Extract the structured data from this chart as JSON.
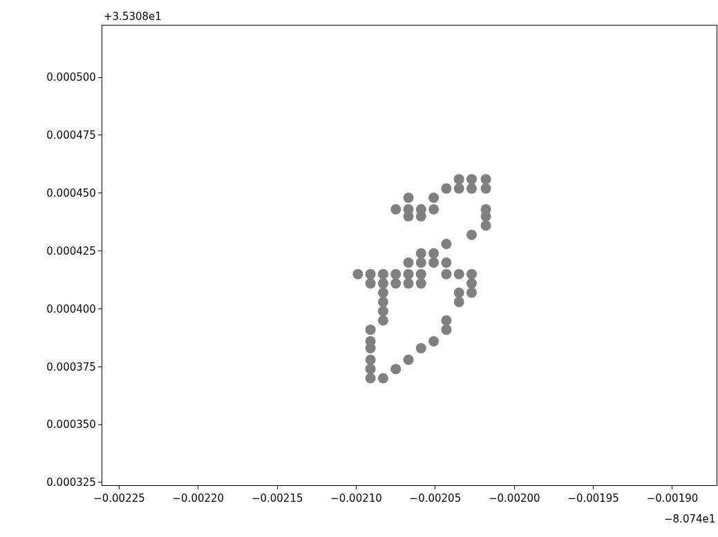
{
  "chart_data": {
    "type": "scatter",
    "color": "#808080",
    "marker": "circle",
    "legend": false,
    "xlim": [
      -0.0022607,
      -0.001872
    ],
    "ylim": [
      0.0003238,
      0.0005224
    ],
    "xticks": [
      {
        "value": -0.00225,
        "label": "−0.00225"
      },
      {
        "value": -0.0022,
        "label": "−0.00220"
      },
      {
        "value": -0.00215,
        "label": "−0.00215"
      },
      {
        "value": -0.0021,
        "label": "−0.00210"
      },
      {
        "value": -0.00205,
        "label": "−0.00205"
      },
      {
        "value": -0.002,
        "label": "−0.00200"
      },
      {
        "value": -0.00195,
        "label": "−0.00195"
      },
      {
        "value": -0.0019,
        "label": "−0.00190"
      }
    ],
    "yticks": [
      {
        "value": 0.000325,
        "label": "0.000325"
      },
      {
        "value": 0.00035,
        "label": "0.000350"
      },
      {
        "value": 0.000375,
        "label": "0.000375"
      },
      {
        "value": 0.0004,
        "label": "0.000400"
      },
      {
        "value": 0.000425,
        "label": "0.000425"
      },
      {
        "value": 0.00045,
        "label": "0.000450"
      },
      {
        "value": 0.000475,
        "label": "0.000475"
      },
      {
        "value": 0.0005,
        "label": "0.000500"
      }
    ],
    "annotations": [
      "+3.5308e1",
      "−8.074e1"
    ],
    "x": [
      -0.002035,
      -0.002035,
      -0.002027,
      -0.002027,
      -0.002018,
      -0.002018,
      -0.002043,
      -0.002051,
      -0.002051,
      -0.002067,
      -0.002067,
      -0.002067,
      -0.002075,
      -0.002059,
      -0.002059,
      -0.002018,
      -0.002018,
      -0.002018,
      -0.002027,
      -0.002043,
      -0.002059,
      -0.002051,
      -0.002067,
      -0.002059,
      -0.002051,
      -0.002043,
      -0.002099,
      -0.002091,
      -0.002083,
      -0.002075,
      -0.002067,
      -0.002059,
      -0.002043,
      -0.002035,
      -0.002027,
      -0.002091,
      -0.002083,
      -0.002075,
      -0.002067,
      -0.002059,
      -0.002027,
      -0.002083,
      -0.002083,
      -0.002083,
      -0.002083,
      -0.002035,
      -0.002035,
      -0.002027,
      -0.002043,
      -0.002043,
      -0.002051,
      -0.002059,
      -0.002067,
      -0.002075,
      -0.002083,
      -0.002091,
      -0.002091,
      -0.002091,
      -0.002091,
      -0.002091,
      -0.002091
    ],
    "values": [
      0.000456,
      0.000452,
      0.000456,
      0.000452,
      0.000456,
      0.000452,
      0.000452,
      0.000448,
      0.000443,
      0.000448,
      0.000443,
      0.00044,
      0.000443,
      0.000443,
      0.00044,
      0.000443,
      0.00044,
      0.000436,
      0.000432,
      0.000428,
      0.000424,
      0.000424,
      0.00042,
      0.00042,
      0.00042,
      0.00042,
      0.000415,
      0.000415,
      0.000415,
      0.000415,
      0.000415,
      0.000415,
      0.000415,
      0.000415,
      0.000415,
      0.000411,
      0.000411,
      0.000411,
      0.000411,
      0.000411,
      0.000411,
      0.000407,
      0.000403,
      0.000399,
      0.000395,
      0.000407,
      0.000403,
      0.000407,
      0.000395,
      0.000391,
      0.000386,
      0.000383,
      0.000378,
      0.000374,
      0.00037,
      0.000391,
      0.000386,
      0.000383,
      0.000378,
      0.000374,
      0.00037
    ]
  }
}
